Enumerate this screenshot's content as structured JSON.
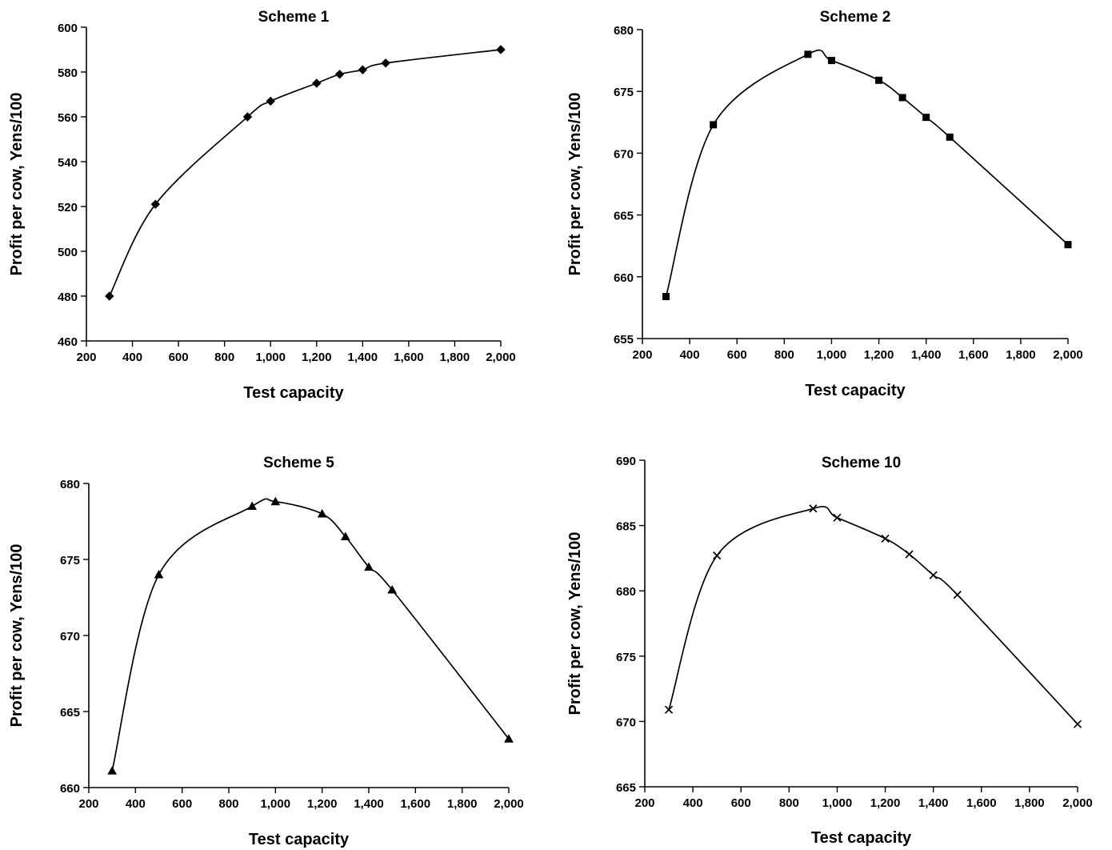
{
  "chart_data": [
    {
      "type": "line",
      "title": "Scheme 1",
      "xlabel": "Test capacity",
      "ylabel": "Profit per cow, Yens/100",
      "xlim": [
        200,
        2000
      ],
      "ylim": [
        460,
        600
      ],
      "x_ticks": [
        200,
        400,
        600,
        800,
        1000,
        1200,
        1400,
        1600,
        1800,
        2000
      ],
      "x_tick_labels": [
        "200",
        "400",
        "600",
        "800",
        "1,000",
        "1,200",
        "1,400",
        "1,600",
        "1,800",
        "2,000"
      ],
      "y_ticks": [
        460,
        480,
        500,
        520,
        540,
        560,
        580,
        600
      ],
      "y_tick_labels": [
        "460",
        "480",
        "500",
        "520",
        "540",
        "560",
        "580",
        "600"
      ],
      "marker": "diamond",
      "grid": false,
      "series": [
        {
          "x": [
            300,
            500,
            900,
            1000,
            1200,
            1300,
            1400,
            1500,
            2000
          ],
          "y": [
            480,
            521,
            560,
            567,
            575,
            579,
            581,
            584,
            590
          ]
        }
      ]
    },
    {
      "type": "line",
      "title": "Scheme 2",
      "xlabel": "Test capacity",
      "ylabel": "Profit per cow, Yens/100",
      "xlim": [
        200,
        2000
      ],
      "ylim": [
        655,
        680
      ],
      "x_ticks": [
        200,
        400,
        600,
        800,
        1000,
        1200,
        1400,
        1600,
        1800,
        2000
      ],
      "x_tick_labels": [
        "200",
        "400",
        "600",
        "800",
        "1,000",
        "1,200",
        "1,400",
        "1,600",
        "1,800",
        "2,000"
      ],
      "y_ticks": [
        655,
        660,
        665,
        670,
        675,
        680
      ],
      "y_tick_labels": [
        "655",
        "660",
        "665",
        "670",
        "675",
        "680"
      ],
      "marker": "square",
      "grid": false,
      "series": [
        {
          "x": [
            300,
            500,
            900,
            1000,
            1200,
            1300,
            1400,
            1500,
            2000
          ],
          "y": [
            658.4,
            672.3,
            678.0,
            677.5,
            675.9,
            674.5,
            672.9,
            671.3,
            662.6
          ]
        }
      ]
    },
    {
      "type": "line",
      "title": "Scheme 5",
      "xlabel": "Test capacity",
      "ylabel": "Profit per cow, Yens/100",
      "xlim": [
        200,
        2000
      ],
      "ylim": [
        660,
        680
      ],
      "x_ticks": [
        200,
        400,
        600,
        800,
        1000,
        1200,
        1400,
        1600,
        1800,
        2000
      ],
      "x_tick_labels": [
        "200",
        "400",
        "600",
        "800",
        "1,000",
        "1,200",
        "1,400",
        "1,600",
        "1,800",
        "2,000"
      ],
      "y_ticks": [
        660,
        665,
        670,
        675,
        680
      ],
      "y_tick_labels": [
        "660",
        "665",
        "670",
        "675",
        "680"
      ],
      "marker": "triangle",
      "grid": false,
      "series": [
        {
          "x": [
            300,
            500,
            900,
            1000,
            1200,
            1300,
            1400,
            1500,
            2000
          ],
          "y": [
            661.1,
            674.0,
            678.5,
            678.8,
            678.0,
            676.5,
            674.5,
            673.0,
            663.2
          ]
        }
      ]
    },
    {
      "type": "line",
      "title": "Scheme 10",
      "xlabel": "Test capacity",
      "ylabel": "Profit per cow, Yens/100",
      "xlim": [
        200,
        2000
      ],
      "ylim": [
        665,
        690
      ],
      "x_ticks": [
        200,
        400,
        600,
        800,
        1000,
        1200,
        1400,
        1600,
        1800,
        2000
      ],
      "x_tick_labels": [
        "200",
        "400",
        "600",
        "800",
        "1,000",
        "1,200",
        "1,400",
        "1,600",
        "1,800",
        "2,000"
      ],
      "y_ticks": [
        665,
        670,
        675,
        680,
        685,
        690
      ],
      "y_tick_labels": [
        "665",
        "670",
        "675",
        "680",
        "685",
        "690"
      ],
      "marker": "x",
      "grid": false,
      "series": [
        {
          "x": [
            300,
            500,
            900,
            1000,
            1200,
            1300,
            1400,
            1500,
            2000
          ],
          "y": [
            670.9,
            682.7,
            686.3,
            685.6,
            684.0,
            682.8,
            681.2,
            679.7,
            669.8
          ]
        }
      ]
    }
  ]
}
